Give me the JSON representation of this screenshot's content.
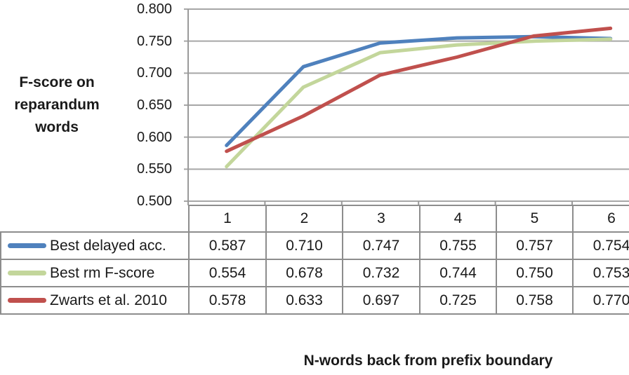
{
  "chart_data": {
    "type": "line",
    "title": "",
    "x_axis_label": "N-words back from prefix boundary",
    "y_axis_label": "F-score on reparandum words",
    "x": [
      1,
      2,
      3,
      4,
      5,
      6
    ],
    "y_ticks": [
      0.8,
      0.75,
      0.7,
      0.65,
      0.6,
      0.55,
      0.5
    ],
    "ylim": [
      0.5,
      0.8
    ],
    "grid": "horizontal-major",
    "legend_position": "data-table-left",
    "series": [
      {
        "name": "Best delayed acc.",
        "color": "#4f81bd",
        "values": [
          0.587,
          0.71,
          0.747,
          0.755,
          0.757,
          0.754
        ]
      },
      {
        "name": "Best rm F-score",
        "color": "#c3d69b",
        "values": [
          0.554,
          0.678,
          0.732,
          0.744,
          0.75,
          0.753
        ]
      },
      {
        "name": "Zwarts et al. 2010",
        "color": "#c0504d",
        "values": [
          0.578,
          0.633,
          0.697,
          0.725,
          0.758,
          0.77
        ]
      }
    ]
  },
  "colors": {
    "gridline": "#a6a6a6",
    "axis_line": "#9a9a9a",
    "table_border": "#8d8d8d",
    "text": "#1a1a1a",
    "background": "#ffffff"
  }
}
